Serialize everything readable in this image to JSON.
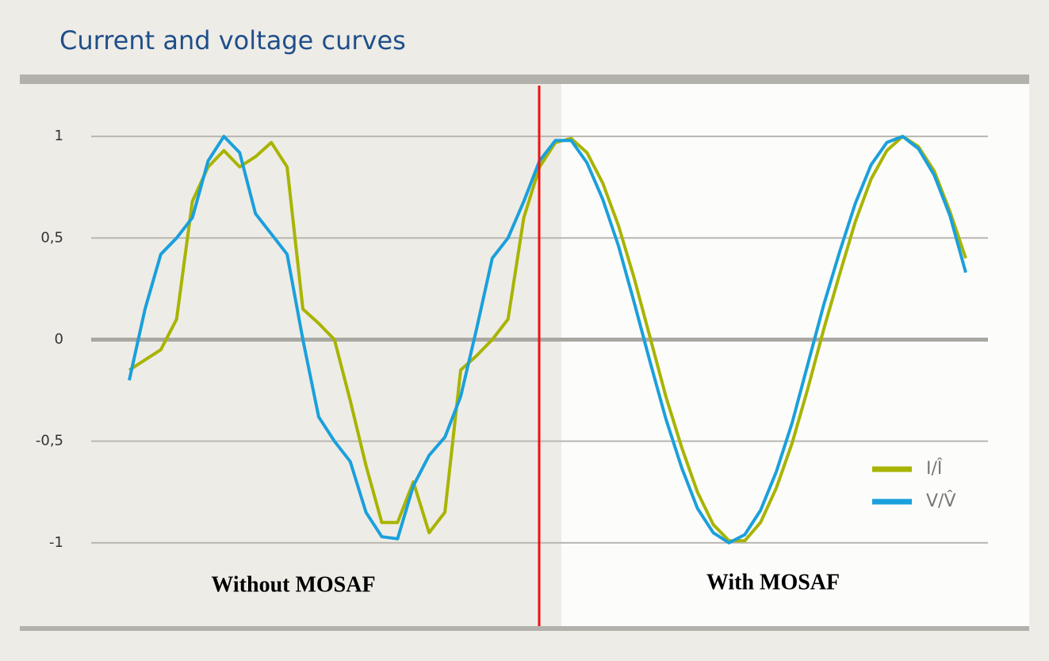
{
  "chart_data": {
    "type": "line",
    "title": "Current and voltage curves",
    "annotations": [
      "Without MOSAF",
      "With MOSAF"
    ],
    "ylim": [
      -1.41,
      1.25
    ],
    "yticks": [
      1,
      {
        "value": 0.5,
        "label": "0,5"
      },
      0,
      {
        "value": -0.5,
        "label": "-0,5"
      },
      -1
    ],
    "grid": true,
    "legend": "lower right",
    "series": [
      {
        "name": "I/Î",
        "color": "#a8b400",
        "values": [
          -0.15,
          -0.1,
          -0.05,
          0.1,
          0.68,
          0.85,
          0.93,
          0.85,
          0.9,
          0.97,
          0.85,
          0.15,
          0.08,
          0.0,
          -0.3,
          -0.62,
          -0.9,
          -0.9,
          -0.7,
          -0.95,
          -0.85,
          -0.15,
          -0.08,
          0.0,
          0.1,
          0.6,
          0.85,
          0.97,
          0.99,
          0.92,
          0.77,
          0.56,
          0.3,
          0.01,
          -0.28,
          -0.53,
          -0.75,
          -0.91,
          -0.99,
          -0.99,
          -0.9,
          -0.73,
          -0.51,
          -0.24,
          0.05,
          0.32,
          0.58,
          0.79,
          0.93,
          1.0,
          0.95,
          0.83,
          0.63,
          0.4
        ]
      },
      {
        "name": "V/V̂",
        "color": "#1aa0dc",
        "values": [
          -0.2,
          0.15,
          0.42,
          0.5,
          0.6,
          0.88,
          1.0,
          0.92,
          0.62,
          0.52,
          0.42,
          0.0,
          -0.38,
          -0.5,
          -0.6,
          -0.85,
          -0.97,
          -0.98,
          -0.72,
          -0.57,
          -0.48,
          -0.28,
          0.05,
          0.4,
          0.5,
          0.68,
          0.88,
          0.98,
          0.98,
          0.87,
          0.69,
          0.46,
          0.18,
          -0.11,
          -0.39,
          -0.63,
          -0.83,
          -0.95,
          -1.0,
          -0.96,
          -0.84,
          -0.65,
          -0.41,
          -0.12,
          0.17,
          0.43,
          0.67,
          0.86,
          0.97,
          1.0,
          0.94,
          0.81,
          0.61,
          0.33
        ]
      }
    ]
  }
}
